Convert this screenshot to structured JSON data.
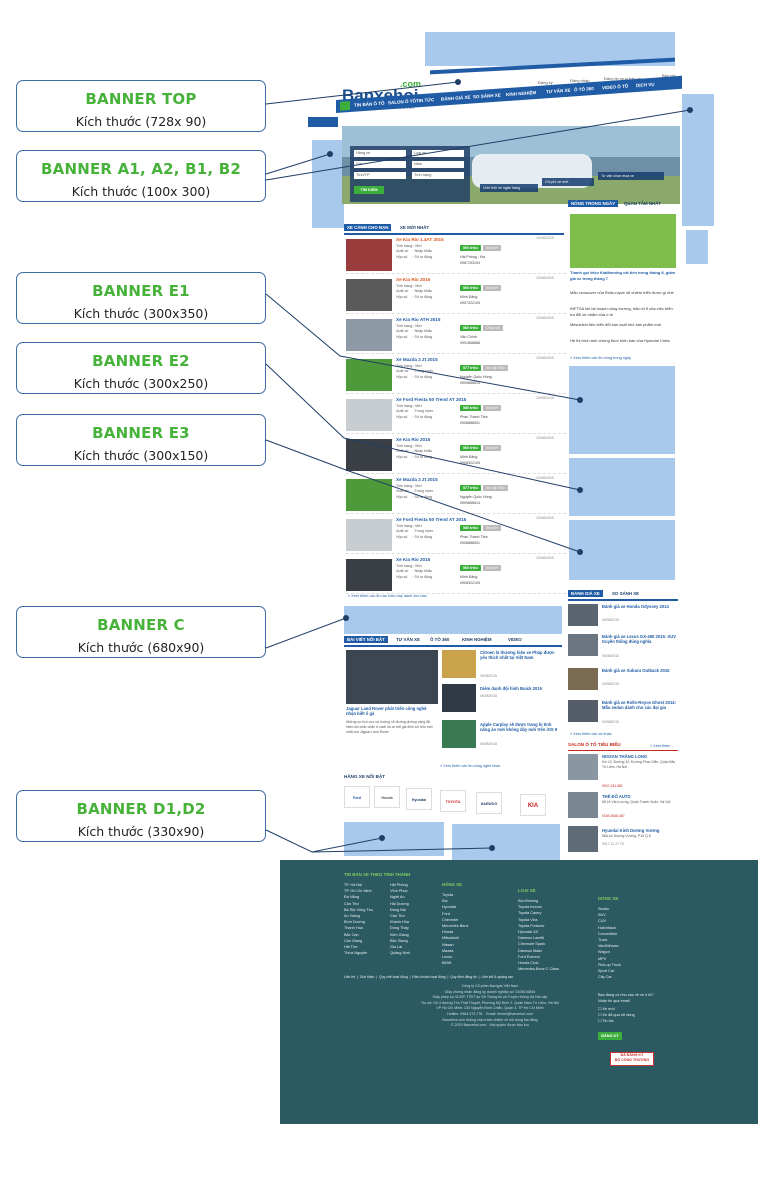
{
  "callouts": [
    {
      "title": "BANNER TOP",
      "size": "Kích thước (728x 90)"
    },
    {
      "title": "BANNER A1, A2, B1, B2",
      "size": "Kích thước (100x 300)"
    },
    {
      "title": "BANNER E1",
      "size": "Kích thước (300x350)"
    },
    {
      "title": "BANNER E2",
      "size": "Kích thước (300x250)"
    },
    {
      "title": "BANNER E3",
      "size": "Kích thước (300x150)"
    },
    {
      "title": "BANNER C",
      "size": "Kích thước (680x90)"
    },
    {
      "title": "BANNER D1,D2",
      "size": "Kích thước (330x90)"
    }
  ],
  "site": {
    "logo": "Banxehoi",
    "logo_tld": ".com",
    "tagline": "Website nhất để mua bán xe hơi",
    "top_links": [
      "Đăng ký",
      "Đăng nhập",
      "Đăng tin mua bán xe",
      "Bảo giá"
    ],
    "nav": [
      "TIN BÁN Ô TÔ",
      "SALON Ô TÔ",
      "TIN TỨC",
      "ĐÁNH GIÁ XE",
      "SO SÁNH XE",
      "KINH NGHIỆM",
      "TƯ VẤN XE",
      "Ô TÔ 360",
      "VIDEO Ô TÔ",
      "DỊCH VỤ"
    ],
    "search": {
      "fields": [
        "Hãng xe",
        "Loại xe",
        "Giá",
        "Năm",
        "Tình/TP",
        "Tình trạng"
      ],
      "button": "TÌM KIẾM",
      "hero_tabs": [
        "Ước tính xe ngân hàng",
        "Chi phí xe mới",
        "Tư vấn chọn mua xe"
      ]
    },
    "listings": {
      "tabs": [
        "XE CÁNH CHO BẠN",
        "XE MỚI NHẤT"
      ],
      "items": [
        {
          "title": "Xe Kia Rio 1.4AT 2015",
          "meta": "Tình trạng : Mới\nXuất xứ    : Nhập khẩu\nHộp số     : Số tự động",
          "price": "500 triệu",
          "cond": "Xe mới",
          "loc": "Hải Phòng - Kia\n0987193194",
          "date": "10/08/2015",
          "hot": true
        },
        {
          "title": "Xe Kia Rio 2015",
          "meta": "Tình trạng : Mới\nXuất xứ    : Nhập khẩu\nHộp số     : Số tự động",
          "price": "500 triệu",
          "cond": "Xe mới",
          "loc": "Minh Đăng\n0907322105",
          "date": "10/08/2015",
          "hot": true
        },
        {
          "title": "Xe Kia Rio ATH 2015",
          "meta": "Tình trạng : Mới\nXuất xứ    : Nhập khẩu\nHộp số     : Số tự động",
          "price": "560 triệu",
          "cond": "Chưa có",
          "loc": "Văn Chính\n0901868868",
          "date": "10/08/2015",
          "hot": false
        },
        {
          "title": "Xe Mazda 2 2t 2015",
          "meta": "Tình trạng : Mới\nXuất xứ    : Trong nước\nHộp số     : Số tự động",
          "price": "577 triệu",
          "cond": "Xe Lắp Tho",
          "loc": "Nguyễn Quốc Hùng\n0909866614",
          "date": "10/08/2015",
          "hot": false
        },
        {
          "title": "Xe Ford Fiesta 50 Trend AT 2015",
          "meta": "Tình trạng : Mới\nXuất xứ    : Trong nước\nHộp số     : Số tự động",
          "price": "580 triệu",
          "cond": "Xe mới",
          "loc": "Phan Thanh Tâm\n0908888001",
          "date": "10/08/2015",
          "hot": false
        },
        {
          "title": "Xe Kia Rio 2015",
          "meta": "Tình trạng : Mới\nXuất xứ    : Nhập khẩu\nHộp số     : Số tự động",
          "price": "560 triệu",
          "cond": "Xe mới",
          "loc": "Minh Đăng\n0908322105",
          "date": "10/08/2015",
          "hot": false
        },
        {
          "title": "Xe Mazda 2 2t 2015",
          "meta": "Tình trạng : Mới\nXuất xứ    : Trong nước\nHộp số     : Số tự động",
          "price": "577 triệu",
          "cond": "Xe Lắp Tho",
          "loc": "Nguyễn Quốc Hùng\n0909866614",
          "date": "10/08/2015",
          "hot": false
        },
        {
          "title": "Xe Ford Fiesta 50 Trend AT 2015",
          "meta": "Tình trạng : Mới\nXuất xứ    : Trong nước\nHộp số     : Số tự động",
          "price": "580 triệu",
          "cond": "Xe mới",
          "loc": "Phan Thanh Tâm\n0908888001",
          "date": "10/08/2015",
          "hot": false
        },
        {
          "title": "Xe Kia Rio 2015",
          "meta": "Tình trạng : Mới\nXuất xứ    : Nhập khẩu\nHộp số     : Số tự động",
          "price": "560 triệu",
          "cond": "Xe mới",
          "loc": "Minh Đăng\n0908322105",
          "date": "10/08/2015",
          "hot": false
        }
      ],
      "more": "» Xem thêm các tin rao hôm nay dành cho bạn"
    },
    "sidebar": {
      "tabs": [
        "NÓNG TRONG NGÀY",
        "QUAN TÂM NHẤT"
      ],
      "headline": "Thanh gọi triệu KiaMorning cải tiến trong tháng 8, giảm giá xe trong tháng 7",
      "text1": "Mẫu crossover của Rolls-royce sẽ chiếm triển được gì nhé",
      "text2": "INFTSA khi tái hoạch công trường, hiệu trị tỉ của việc triển tra đổi xe nhắm của ô tô",
      "text3": "Mitsubishi tiên biển đổi sản xuất nhỏ sản phẩm mới",
      "text4": "Hệ thị trình ánh chứng thức biến bán của Hyundai Creta",
      "more": "» Xem thêm các tin nóng trong ngày"
    },
    "compare": {
      "tabs": [
        "ĐÁNH GIÁ XE",
        "SO SÁNH XE"
      ],
      "items": [
        {
          "title": "Đánh giá xe Honda Odyssey 2014",
          "date": "06/08/2015"
        },
        {
          "title": "Đánh giá xe Lexus GX-460 2015: SUV truyền thống đúng nghĩa",
          "date": "06/08/2015"
        },
        {
          "title": "Đánh giá xe Subaru Outback 2015",
          "date": "03/08/2015"
        },
        {
          "title": "Đánh giá xe Rolls-Royce Ghost 2014: Mẫu sedan dành cho các đại gia",
          "date": "03/08/2015"
        }
      ],
      "more": "» Xem thêm các xe khác"
    },
    "salon": {
      "title": "SALON Ô TÔ TIÊU BIỂU",
      "more": "» Xem thêm",
      "items": [
        {
          "name": "NISSAN THĂNG LONG",
          "addr": "Km 12, Đường 32, Đường Phúc Diễn, Quận Bắc Từ Liêm, Hà Nội",
          "phone": "0947.431.881"
        },
        {
          "name": "THẾ ĐÔ AUTO",
          "addr": "68 Lê Văn Lương, Quận Thanh Xuân, Hà Nội",
          "phone": "0169.2648.487"
        },
        {
          "name": "Hyundai Kinh Dương Vương",
          "addr": "56A An Dương Vương, P.16 Q.8",
          "phone": "0917.31.27.79"
        }
      ]
    },
    "news": {
      "tabs": [
        "BÀI VIẾT NỔI BẬT",
        "TƯ VẤN XE",
        "Ô TÔ 360",
        "KINH NGHIỆM",
        "VIDEO"
      ],
      "main_title": "Jaguar Land Rover phát triển công nghệ nhận biết ổ gà",
      "main_text": "Những sự tích cực và hướng nổ đường dường vàng đã hiếm khi chắc chắn ở cách lái xe bởi gia đình sở hữu mới nhất của Jaguar Land Rover",
      "items": [
        {
          "title": "Citroen là thương hiệu xe Pháp được yêu thích nhất tại Việt Nam",
          "date": "06/08/2015"
        },
        {
          "title": "Diêm danh đội hình Buick 2015",
          "date": "06/08/2015"
        },
        {
          "title": "Apple Carplay sẽ được trang bị tính năng ảo mới không dây mới trên iOS 9",
          "date": "06/08/2015"
        }
      ],
      "more": "» Xem thêm các tin công nghệ khác"
    },
    "brands": {
      "title": "HÃNG XE NỔI BẬT",
      "items": [
        "Ford",
        "Honda",
        "Hyundai",
        "TOYOTA",
        "DAEWOO",
        "KIA"
      ]
    },
    "footer": {
      "col1_title": "TIN BÁN XE THEO TỈNH THÀNH",
      "col1a": "TP. Hà Nội\nTP. Hồ Chí Minh\nĐà Nẵng\nCần Thơ\nBà Rịa Vũng Tàu\nAn Giang\nBình Dương\nThanh Hóa\nBắc Cạn\nCần Giang\nHải Thơ\nThừa Nguyên",
      "col1b": "Hải Phòng\nVĩnh Phúc\nNghệ An\nHải Dương\nĐồng Nai\nCần Thơ\nKhánh Hòa\nĐồng Tháp\nKiên Giang\nBắc Giang\nGia Lai\nQuảng Ninh",
      "col2_title": "HÃNG XE",
      "col2": "Toyota\nKia\nHyundai\nFord\nChevrolet\nMercedes Benz\nHonda\nMitsubishi\nNissan\nMazda\nLexus\nBMW",
      "col3_title": "LOẠI XE",
      "col3": "Kia Morning\nToyota Innova\nToyota Camry\nToyota Vios\nToyota Fortuner\nHyundai i10\nDaewoo Lacetti\nChevrolet Spark\nDaewoo Matiz\nFord Everest\nHonda Civic\nMercedes-Benz C Class",
      "col4_title": "DÒNG XE",
      "col4": "Sedan\nSUV\nCUV\nHatchback\nConvertible\nTruck\nVan/Minivan\nWagon\nMPV\nPick-up Truck\nSport Car\nCity Car",
      "links": "Liên hệ  |  Giới thiệu  |  Quy chế hoạt động  |  Điều khoản hoạt động  |  Quy định đăng tin  |  Liên kết & quảng cáo",
      "company": "Công ty Cổ phần Navigos Việt Nam\nGiấy chứng nhận đăng ký doanh nghiệp số: 0105016894\nGiấy phép số 41/GP-TTĐT do Sở Thông tin và Truyền thông Hà Nội cấp\nTrụ sở: Số 4 đường Tôn Thất Thuyết, Phường Mỹ Đình 2, Quận Nam Từ Liêm, Hà Nội\nVP Hồ Chí Minh: 130 Nguyễn Đình Chiểu, Quận 3, TP Hồ Chí Minh\nHotline: 0984.373.778    Email: lienhe@banxehoi.com\nBanxehoi.com không chịu trách nhiệm về nội dung bài đăng\n© 2015 Banxehoi.com - Mọi quyền được bảo lưu",
      "newsletter": "Bạn đang có nhu cầu về xe ô tô?\nNhận tin qua email",
      "options": "☐ Xe mới\n☐ Xe đã qua sử dụng\n☐ Tin tức",
      "subscribe": "ĐĂNG KÝ",
      "badge": "ĐÃ ĐĂNG KÝ\nBỘ CÔNG THƯƠNG"
    }
  }
}
